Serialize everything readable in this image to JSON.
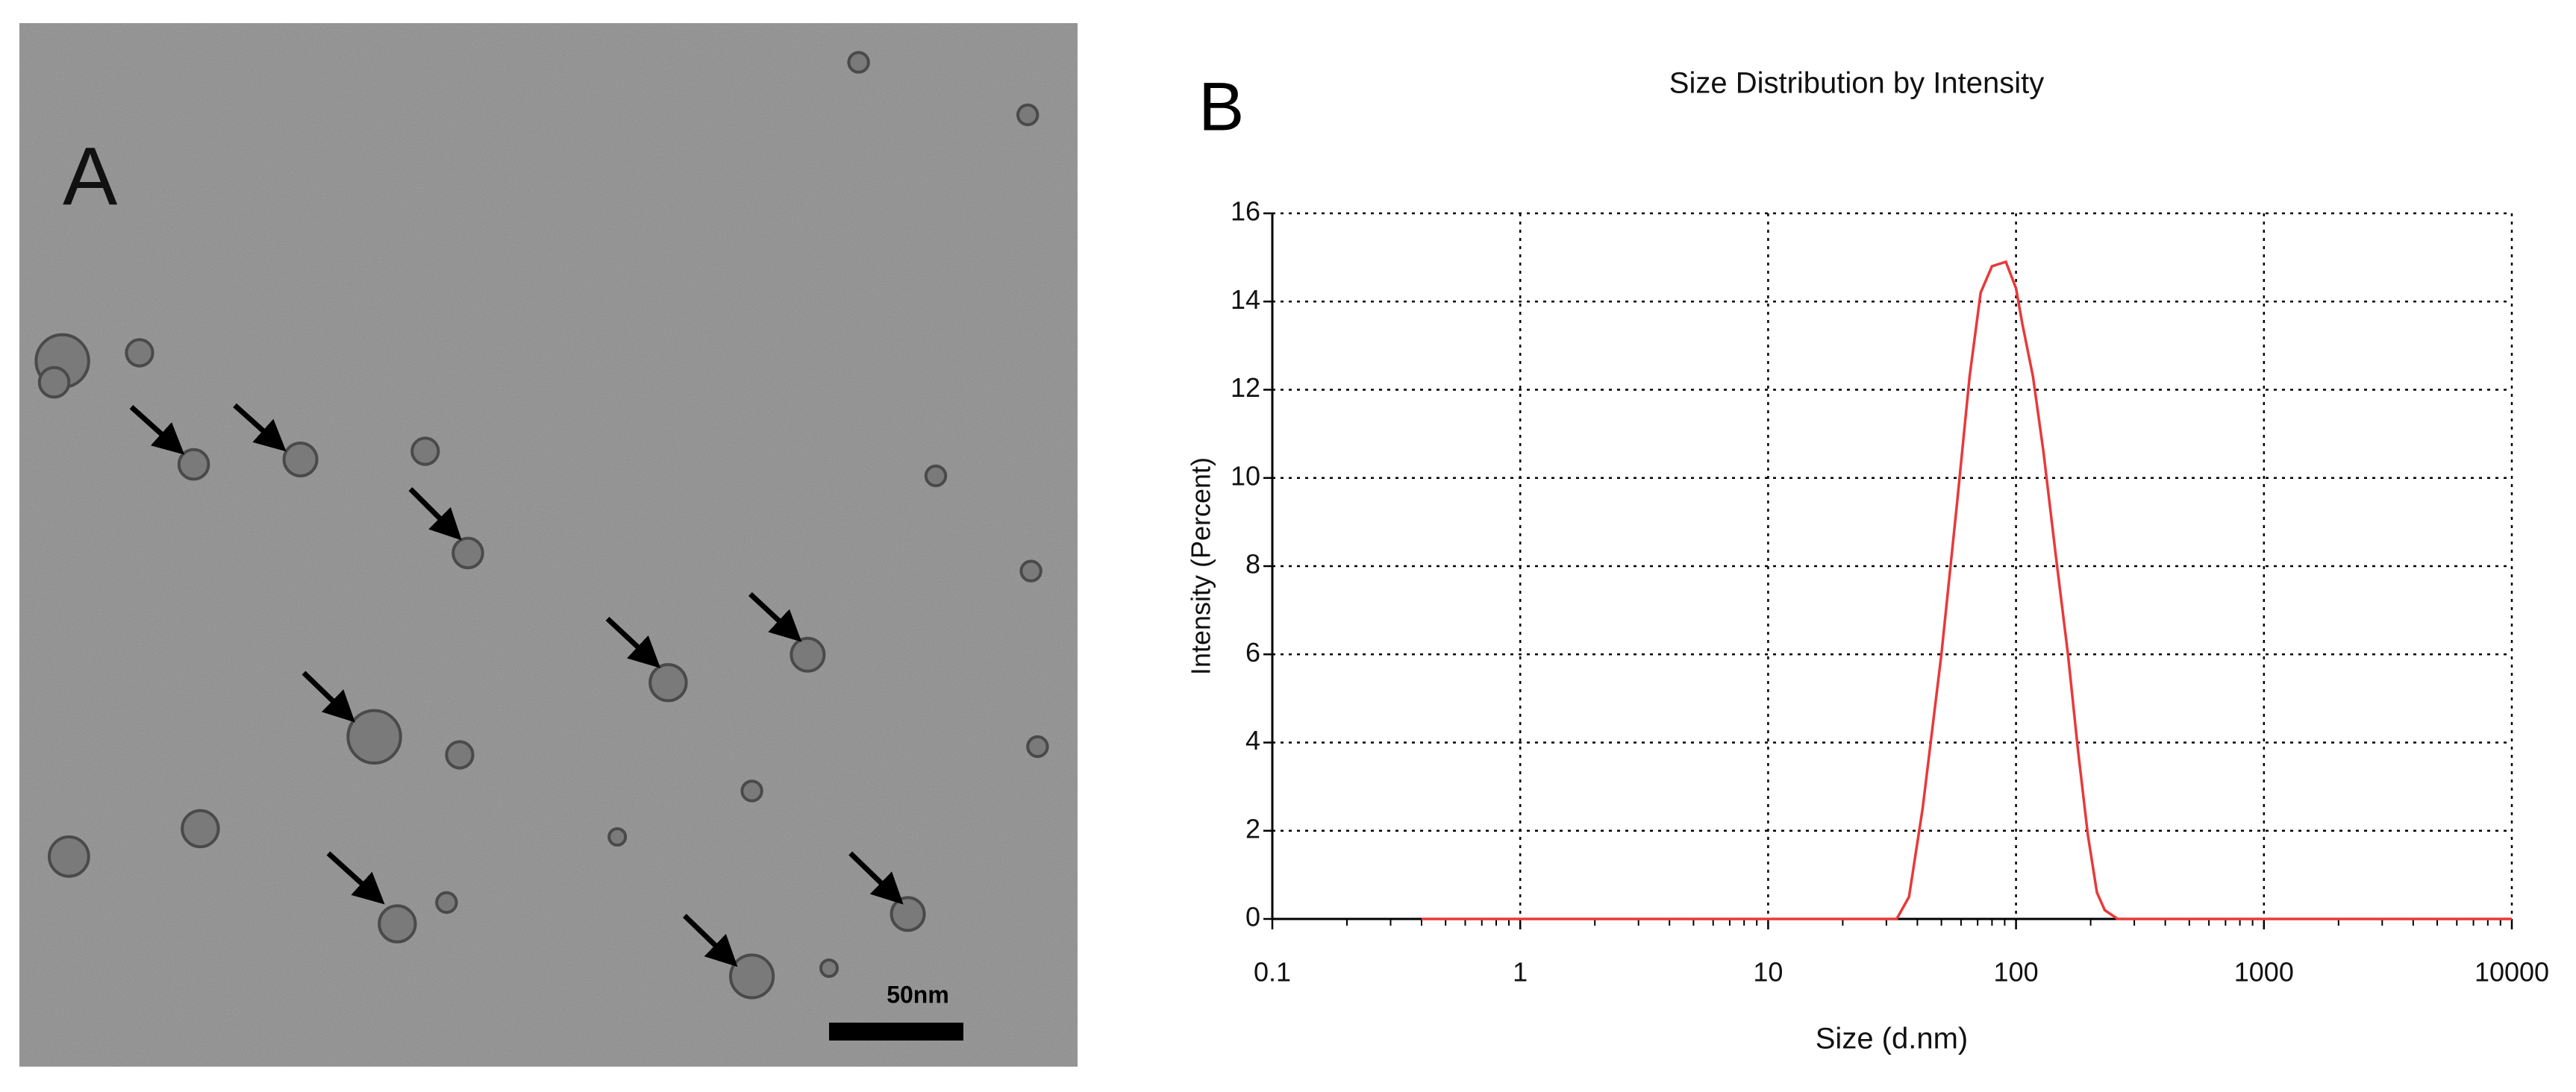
{
  "panel_a": {
    "label": "A",
    "scale_bar": "50nm"
  },
  "panel_b_label": "B",
  "chart_data": {
    "type": "line",
    "title": "Size Distribution by Intensity",
    "x_label": "Size (d.nm)",
    "y_label": "Intensity (Percent)",
    "x_log": true,
    "grid": true,
    "xlim": [
      0.1,
      10000
    ],
    "xticks": [
      0.1,
      1,
      10,
      100,
      1000,
      10000
    ],
    "ylim": [
      0,
      16
    ],
    "yticks": [
      0,
      2,
      4,
      6,
      8,
      10,
      12,
      14,
      16
    ],
    "series": [
      {
        "color": "#e8393a",
        "x": [
          0.4,
          33,
          37,
          42,
          50,
          58,
          65,
          72,
          80,
          91,
          100,
          106,
          117,
          129,
          145,
          162,
          178,
          195,
          212,
          228,
          257,
          10000
        ],
        "values": [
          0,
          0,
          0.5,
          2.5,
          6,
          9.5,
          12.3,
          14.2,
          14.8,
          14.9,
          14.3,
          13.5,
          12.3,
          10.6,
          8.2,
          6,
          3.8,
          1.9,
          0.6,
          0.2,
          0,
          0
        ]
      }
    ]
  }
}
